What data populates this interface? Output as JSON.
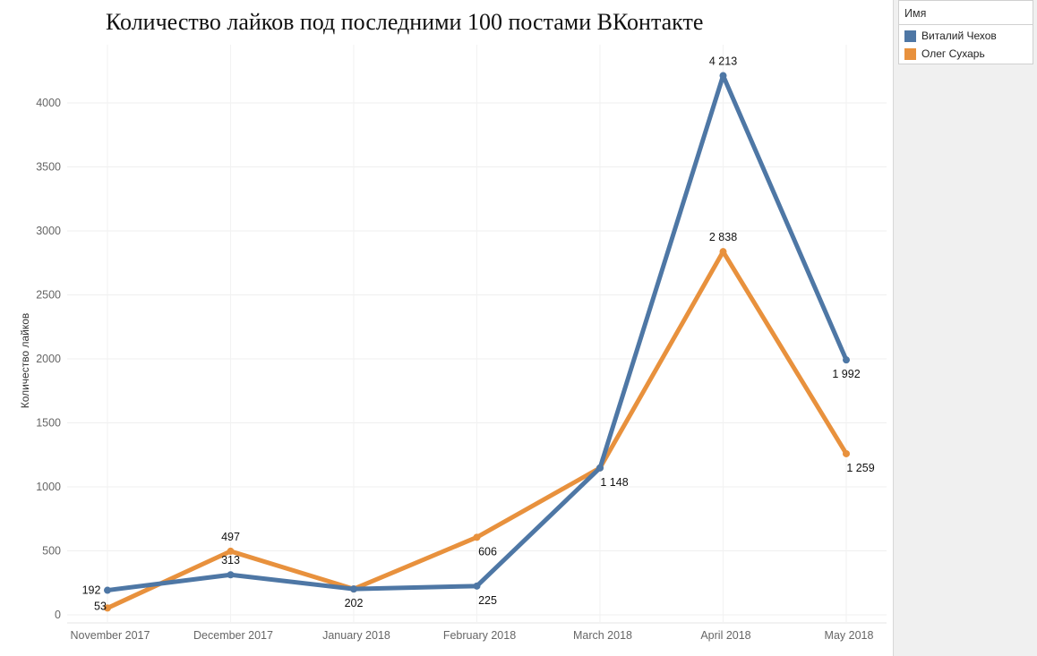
{
  "chart_data": {
    "type": "line",
    "title": "Количество лайков под последними 100 постами ВКонтакте",
    "xlabel": "",
    "ylabel": "Количество лайков",
    "ylim": [
      0,
      4400
    ],
    "yticks": [
      "0",
      "500",
      "1000",
      "1500",
      "2000",
      "2500",
      "3000",
      "3500",
      "4000"
    ],
    "categories": [
      "November 2017",
      "December 2017",
      "January 2018",
      "February 2018",
      "March 2018",
      "April 2018",
      "May 2018"
    ],
    "series": [
      {
        "name": "Виталий Чехов",
        "color": "#4e77a5",
        "values": [
          192,
          313,
          202,
          225,
          1148,
          4213,
          1992
        ],
        "labels": [
          "192",
          "313",
          "202",
          "225",
          "1 148",
          "4 213",
          "1 992"
        ]
      },
      {
        "name": "Олег Сухарь",
        "color": "#e8913d",
        "values": [
          53,
          497,
          202,
          606,
          1148,
          2838,
          1259
        ],
        "labels": [
          "53",
          "497",
          "",
          "606",
          "",
          "2 838",
          "1 259"
        ]
      }
    ],
    "grid": true,
    "legend_position": "top-right"
  },
  "legend": {
    "title": "Имя",
    "items": [
      {
        "label": "Виталий Чехов",
        "color": "#4e77a5"
      },
      {
        "label": "Олег Сухарь",
        "color": "#e8913d"
      }
    ]
  }
}
